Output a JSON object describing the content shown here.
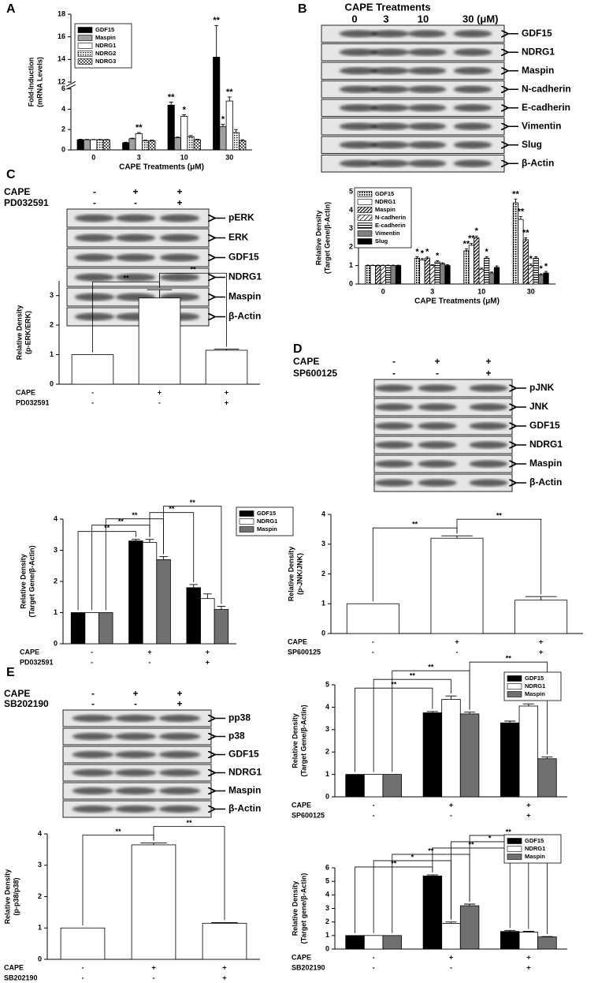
{
  "panels": [
    "A",
    "B",
    "C",
    "D",
    "E"
  ],
  "blots": [
    {
      "title": "CAPE Treatments",
      "columns": [
        "0",
        "3",
        "10",
        "30 (μM)"
      ],
      "rows": [
        "GDF15",
        "NDRG1",
        "Maspin",
        "N-cadherin",
        "E-cadherin",
        "Vimentin",
        "Slug",
        "β-Actin"
      ]
    },
    {
      "treatments": [
        {
          "name": "CAPE",
          "marks": [
            "-",
            "+",
            "+"
          ]
        },
        {
          "name": "PD032591",
          "marks": [
            "-",
            "-",
            "+"
          ]
        }
      ],
      "rows": [
        "pERK",
        "ERK",
        "GDF15",
        "NDRG1",
        "Maspin",
        "β-Actin"
      ]
    },
    {
      "treatments": [
        {
          "name": "CAPE",
          "marks": [
            "-",
            "+",
            "+"
          ]
        },
        {
          "name": "SP600125",
          "marks": [
            "-",
            "-",
            "+"
          ]
        }
      ],
      "rows": [
        "pJNK",
        "JNK",
        "GDF15",
        "NDRG1",
        "Maspin",
        "β-Actin"
      ]
    },
    {
      "treatments": [
        {
          "name": "CAPE",
          "marks": [
            "-",
            "+",
            "+"
          ]
        },
        {
          "name": "SB202190",
          "marks": [
            "-",
            "-",
            "+"
          ]
        }
      ],
      "rows": [
        "pp38",
        "p38",
        "GDF15",
        "NDRG1",
        "Maspin",
        "β-Actin"
      ]
    }
  ],
  "chart_data": [
    {
      "type": "bar",
      "ylabel": [
        "Fold-Induction",
        "(mRNA Levels)"
      ],
      "xlabel": "CAPE Treatments (μM)",
      "categories": [
        "0",
        "3",
        "10",
        "30"
      ],
      "ylim": [
        0,
        18
      ],
      "ybreak": [
        6,
        12
      ],
      "yticks": [
        0,
        2,
        4,
        6,
        12,
        14,
        16,
        18
      ],
      "legend": "upper left",
      "series": [
        {
          "name": "GDF15",
          "color": "#000000",
          "values": [
            1,
            0.7,
            4.4,
            14.2
          ],
          "errors": [
            0.05,
            0.05,
            0.3,
            2.8
          ]
        },
        {
          "name": "Maspin",
          "color": "#a0a0a0",
          "values": [
            1,
            1.1,
            1.2,
            2.3
          ],
          "errors": [
            0.03,
            0.05,
            0.05,
            0.2
          ]
        },
        {
          "name": "NDRG1",
          "color": "#ffffff",
          "values": [
            1,
            1.6,
            3.3,
            4.8
          ],
          "errors": [
            0.03,
            0.1,
            0.15,
            0.4
          ]
        },
        {
          "name": "NDRG2",
          "color": "#ffffff",
          "pattern": "dots",
          "values": [
            1,
            0.9,
            1.3,
            1.7
          ],
          "errors": [
            0.03,
            0.05,
            0.1,
            0.3
          ]
        },
        {
          "name": "NDRG3",
          "color": "#ffffff",
          "pattern": "checker",
          "values": [
            1,
            0.9,
            1.0,
            0.9
          ],
          "errors": [
            0.03,
            0.05,
            0.05,
            0.1
          ]
        }
      ],
      "annotations": [
        {
          "series": 2,
          "category": 1,
          "text": "**"
        },
        {
          "series": 0,
          "category": 2,
          "text": "**"
        },
        {
          "series": 2,
          "category": 2,
          "text": "*"
        },
        {
          "series": 0,
          "category": 3,
          "text": "**"
        },
        {
          "series": 1,
          "category": 3,
          "text": "*"
        },
        {
          "series": 2,
          "category": 3,
          "text": "**"
        }
      ]
    },
    {
      "type": "bar",
      "ylabel": [
        "Relative Density",
        "(Target Gene/β-Actin)"
      ],
      "xlabel": "CAPE Treatments (μM)",
      "categories": [
        "0",
        "3",
        "10",
        "30"
      ],
      "ylim": [
        0,
        5
      ],
      "yticks": [
        0,
        1,
        2,
        3,
        4,
        5
      ],
      "legend": "upper left",
      "series": [
        {
          "name": "GDF15",
          "color": "#ffffff",
          "pattern": "vdash",
          "values": [
            1,
            1.4,
            1.8,
            4.4
          ],
          "errors": [
            0.02,
            0.08,
            0.1,
            0.2
          ]
        },
        {
          "name": "NDRG1",
          "color": "#ffffff",
          "values": [
            1,
            1.3,
            2.1,
            3.5
          ],
          "errors": [
            0.02,
            0.08,
            0.1,
            0.15
          ]
        },
        {
          "name": "Maspin",
          "color": "#ffffff",
          "pattern": "hatch-dense",
          "values": [
            1,
            1.4,
            2.5,
            2.4
          ],
          "errors": [
            0.02,
            0.06,
            0.1,
            0.1
          ]
        },
        {
          "name": "N-cadherin",
          "color": "#ffffff",
          "pattern": "hatch",
          "values": [
            1,
            1.0,
            0.8,
            1.0
          ],
          "errors": [
            0.02,
            0.05,
            0.06,
            0.08
          ]
        },
        {
          "name": "E-cadherin",
          "color": "#ffffff",
          "pattern": "hstripe",
          "values": [
            1,
            1.2,
            1.4,
            1.4
          ],
          "errors": [
            0.02,
            0.06,
            0.08,
            0.08
          ]
        },
        {
          "name": "Vimentin",
          "color": "#808080",
          "values": [
            1,
            1.1,
            0.6,
            0.5
          ],
          "errors": [
            0.02,
            0.05,
            0.05,
            0.05
          ]
        },
        {
          "name": "Slug",
          "color": "#000000",
          "values": [
            1,
            1.0,
            0.9,
            0.6
          ],
          "errors": [
            0.02,
            0.05,
            0.08,
            0.08
          ]
        }
      ],
      "annotations": [
        {
          "series": 0,
          "category": 1,
          "text": "*"
        },
        {
          "series": 1,
          "category": 1,
          "text": "*"
        },
        {
          "series": 2,
          "category": 1,
          "text": "*"
        },
        {
          "series": 4,
          "category": 1,
          "text": "*"
        },
        {
          "series": 0,
          "category": 2,
          "text": "**"
        },
        {
          "series": 1,
          "category": 2,
          "text": "**"
        },
        {
          "series": 2,
          "category": 2,
          "text": "*"
        },
        {
          "series": 4,
          "category": 2,
          "text": "*"
        },
        {
          "series": 0,
          "category": 3,
          "text": "**"
        },
        {
          "series": 1,
          "category": 3,
          "text": "**"
        },
        {
          "series": 2,
          "category": 3,
          "text": "**"
        },
        {
          "series": 3,
          "category": 3,
          "text": "*"
        },
        {
          "series": 5,
          "category": 3,
          "text": "*"
        },
        {
          "series": 6,
          "category": 3,
          "text": "*"
        }
      ]
    },
    {
      "type": "bar",
      "ylabel": [
        "Relative Density",
        "(p-ERK/ERK)"
      ],
      "categories": [
        null,
        null,
        null
      ],
      "ylim": [
        0,
        3.5
      ],
      "yticks": [
        0,
        1,
        2,
        3
      ],
      "series": [
        {
          "color": "#ffffff",
          "values": [
            1,
            2.92,
            1.15
          ],
          "errors": [
            0,
            0.28,
            0.04
          ]
        }
      ],
      "treatments": [
        {
          "name": "CAPE",
          "marks": [
            "-",
            "+",
            "+"
          ]
        },
        {
          "name": "PD032591",
          "marks": [
            "-",
            "-",
            "+"
          ]
        }
      ],
      "brackets": [
        {
          "from": [
            0,
            0
          ],
          "to": [
            1,
            0
          ],
          "text": "**"
        },
        {
          "from": [
            1,
            0
          ],
          "to": [
            2,
            0
          ],
          "text": "**"
        }
      ]
    },
    {
      "type": "bar",
      "ylabel": [
        "Relative Density",
        "(Target Gene/β-Actin)"
      ],
      "categories": [
        null,
        null,
        null
      ],
      "ylim": [
        0,
        4
      ],
      "yticks": [
        0,
        1,
        2,
        3,
        4
      ],
      "legend": "upper right",
      "series": [
        {
          "name": "GDF15",
          "color": "#000000",
          "values": [
            1,
            3.3,
            1.8
          ],
          "errors": [
            0,
            0.05,
            0.1
          ]
        },
        {
          "name": "NDRG1",
          "color": "#ffffff",
          "values": [
            1,
            3.25,
            1.45
          ],
          "errors": [
            0,
            0.1,
            0.15
          ]
        },
        {
          "name": "Maspin",
          "color": "#707070",
          "values": [
            1,
            2.7,
            1.1
          ],
          "errors": [
            0,
            0.1,
            0.1
          ]
        }
      ],
      "treatments": [
        {
          "name": "CAPE",
          "marks": [
            "-",
            "+",
            "+"
          ]
        },
        {
          "name": "PD032591",
          "marks": [
            "-",
            "-",
            "+"
          ]
        }
      ],
      "brackets": [
        {
          "from": [
            0,
            0
          ],
          "to": [
            1,
            0
          ],
          "text": "**"
        },
        {
          "from": [
            0,
            1
          ],
          "to": [
            1,
            1
          ],
          "text": "**"
        },
        {
          "from": [
            0,
            2
          ],
          "to": [
            1,
            2
          ],
          "text": "**"
        },
        {
          "from": [
            1,
            1
          ],
          "to": [
            2,
            0
          ],
          "text": "**"
        },
        {
          "from": [
            1,
            2
          ],
          "to": [
            2,
            2
          ],
          "text": "**"
        }
      ]
    },
    {
      "type": "bar",
      "ylabel": [
        "Relative Density",
        "(p-JNK/JNK)"
      ],
      "categories": [
        null,
        null,
        null
      ],
      "ylim": [
        0,
        4
      ],
      "yticks": [
        0,
        1,
        2,
        3,
        4
      ],
      "series": [
        {
          "color": "#ffffff",
          "values": [
            1,
            3.2,
            1.12
          ],
          "errors": [
            0,
            0.08,
            0.12
          ]
        }
      ],
      "treatments": [
        {
          "name": "CAPE",
          "marks": [
            "-",
            "+",
            "+"
          ]
        },
        {
          "name": "SP600125",
          "marks": [
            "-",
            "-",
            "+"
          ]
        }
      ],
      "brackets": [
        {
          "from": [
            0,
            0
          ],
          "to": [
            1,
            0
          ],
          "text": "**"
        },
        {
          "from": [
            1,
            0
          ],
          "to": [
            2,
            0
          ],
          "text": "**"
        }
      ]
    },
    {
      "type": "bar",
      "ylabel": [
        "Relative Density",
        "(Target Gene/β-Actin)"
      ],
      "categories": [
        null,
        null,
        null
      ],
      "ylim": [
        0,
        5
      ],
      "yticks": [
        0,
        1,
        2,
        3,
        4,
        5
      ],
      "legend": "upper right",
      "series": [
        {
          "name": "GDF15",
          "color": "#000000",
          "values": [
            1,
            3.75,
            3.3
          ],
          "errors": [
            0,
            0.06,
            0.08
          ]
        },
        {
          "name": "NDRG1",
          "color": "#ffffff",
          "values": [
            1,
            4.35,
            4.05
          ],
          "errors": [
            0,
            0.15,
            0.1
          ]
        },
        {
          "name": "Maspin",
          "color": "#707070",
          "values": [
            1,
            3.7,
            1.7
          ],
          "errors": [
            0,
            0.08,
            0.08
          ]
        }
      ],
      "treatments": [
        {
          "name": "CAPE",
          "marks": [
            "-",
            "+",
            "+"
          ]
        },
        {
          "name": "SP600125",
          "marks": [
            "-",
            "-",
            "+"
          ]
        }
      ],
      "brackets": [
        {
          "from": [
            0,
            0
          ],
          "to": [
            1,
            0
          ],
          "text": "**"
        },
        {
          "from": [
            0,
            1
          ],
          "to": [
            1,
            1
          ],
          "text": "**"
        },
        {
          "from": [
            0,
            2
          ],
          "to": [
            1,
            2
          ],
          "text": "**"
        },
        {
          "from": [
            1,
            2
          ],
          "to": [
            2,
            2
          ],
          "text": "**"
        }
      ]
    },
    {
      "type": "bar",
      "ylabel": [
        "Relative Density",
        "(p-p38/p38)"
      ],
      "categories": [
        null,
        null,
        null
      ],
      "ylim": [
        0,
        4
      ],
      "yticks": [
        0,
        1,
        2,
        3,
        4
      ],
      "series": [
        {
          "color": "#ffffff",
          "values": [
            1,
            3.65,
            1.15
          ],
          "errors": [
            0,
            0.06,
            0.02
          ]
        }
      ],
      "treatments": [
        {
          "name": "CAPE",
          "marks": [
            "-",
            "+",
            "+"
          ]
        },
        {
          "name": "SB202190",
          "marks": [
            "-",
            "-",
            "+"
          ]
        }
      ],
      "brackets": [
        {
          "from": [
            0,
            0
          ],
          "to": [
            1,
            0
          ],
          "text": "**"
        },
        {
          "from": [
            1,
            0
          ],
          "to": [
            2,
            0
          ],
          "text": "**"
        }
      ]
    },
    {
      "type": "bar",
      "ylabel": [
        "Relative Density",
        "(Target gene/β-Actin)"
      ],
      "categories": [
        null,
        null,
        null
      ],
      "ylim": [
        0,
        6
      ],
      "yticks": [
        0,
        1,
        2,
        3,
        4,
        5,
        6
      ],
      "legend": "upper right",
      "series": [
        {
          "name": "GDF15",
          "color": "#000000",
          "values": [
            1,
            5.4,
            1.3
          ],
          "errors": [
            0,
            0.08,
            0.08
          ]
        },
        {
          "name": "NDRG1",
          "color": "#ffffff",
          "values": [
            1,
            1.9,
            1.25
          ],
          "errors": [
            0,
            0.1,
            0.06
          ]
        },
        {
          "name": "Maspin",
          "color": "#707070",
          "values": [
            1,
            3.2,
            0.9
          ],
          "errors": [
            0,
            0.12,
            0.03
          ]
        }
      ],
      "treatments": [
        {
          "name": "CAPE",
          "marks": [
            "-",
            "+",
            "+"
          ]
        },
        {
          "name": "SB202190",
          "marks": [
            "-",
            "-",
            "+"
          ]
        }
      ],
      "brackets": [
        {
          "from": [
            0,
            0
          ],
          "to": [
            1,
            0
          ],
          "text": "**"
        },
        {
          "from": [
            0,
            1
          ],
          "to": [
            1,
            1
          ],
          "text": "*"
        },
        {
          "from": [
            0,
            2
          ],
          "to": [
            1,
            2
          ],
          "text": "**"
        },
        {
          "from": [
            1,
            0
          ],
          "to": [
            2,
            0
          ],
          "text": "**"
        },
        {
          "from": [
            1,
            1
          ],
          "to": [
            2,
            1
          ],
          "text": "*"
        },
        {
          "from": [
            1,
            2
          ],
          "to": [
            2,
            2
          ],
          "text": "**"
        }
      ]
    }
  ]
}
